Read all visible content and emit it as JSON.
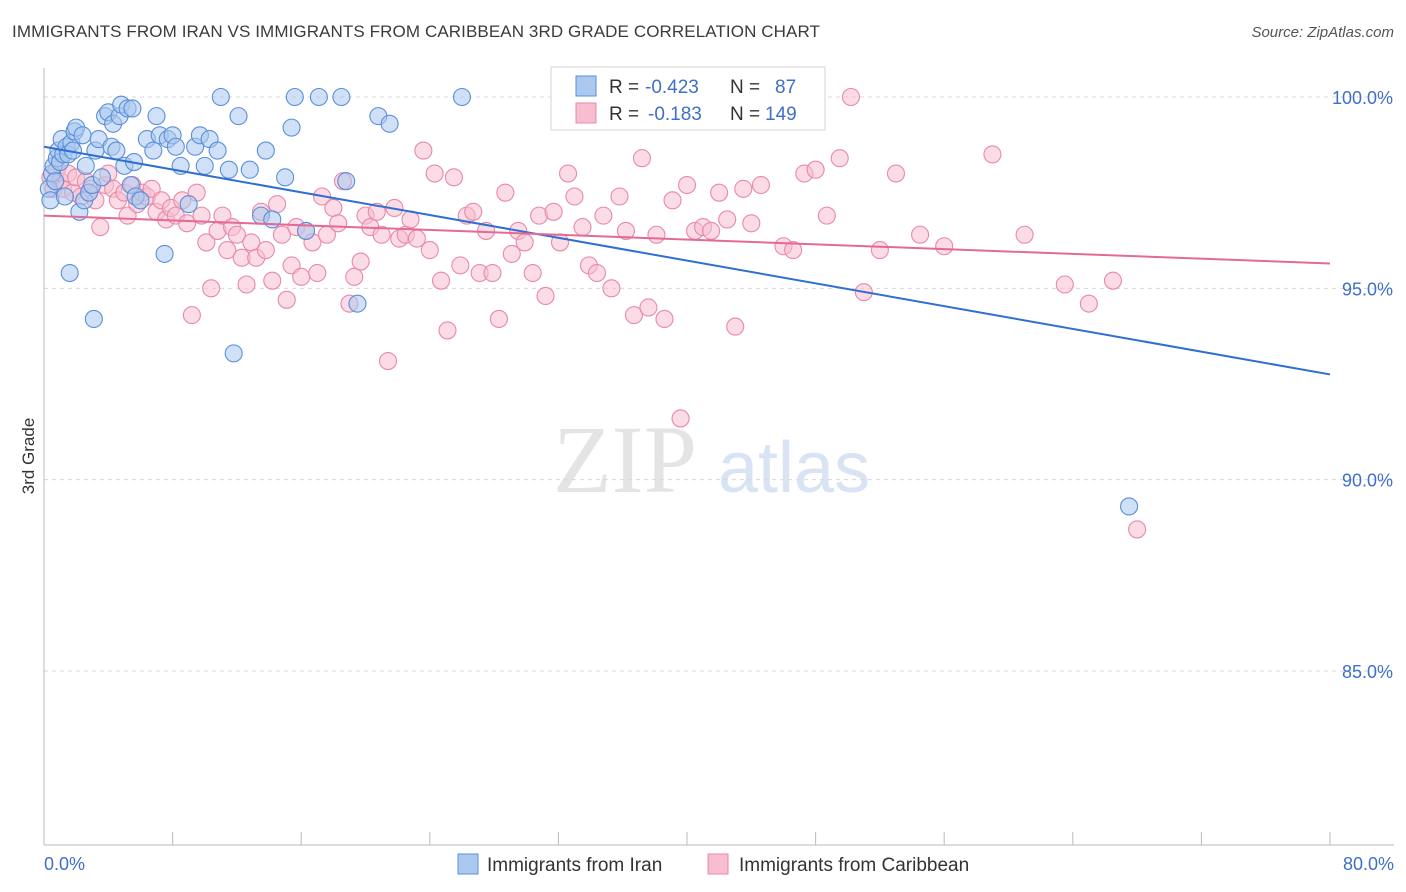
{
  "header": {
    "title": "IMMIGRANTS FROM IRAN VS IMMIGRANTS FROM CARIBBEAN 3RD GRADE CORRELATION CHART",
    "source": "Source: ZipAtlas.com"
  },
  "watermark": {
    "zip": "ZIP",
    "atlas": "atlas"
  },
  "legend_box": {
    "rows": [
      {
        "r_label": "R =",
        "r_value": "-0.423",
        "n_label": "N =",
        "n_value": "87"
      },
      {
        "r_label": "R =",
        "r_value": "-0.183",
        "n_label": "N =",
        "n_value": "149"
      }
    ]
  },
  "bottom_legend": [
    {
      "label": "Immigrants from Iran"
    },
    {
      "label": "Immigrants from Caribbean"
    }
  ],
  "colors": {
    "iran_fill": "#aac8f0",
    "iran_stroke": "#5b8fd8",
    "iran_line": "#2e6fcf",
    "carib_fill": "#f7bdd0",
    "carib_stroke": "#e889a8",
    "carib_line": "#e36a95",
    "tick_text": "#3f6fc9",
    "grid": "#d8d8d8"
  },
  "chart_data": {
    "type": "scatter",
    "title": "IMMIGRANTS FROM IRAN VS IMMIGRANTS FROM CARIBBEAN 3RD GRADE CORRELATION CHART",
    "xlabel": "",
    "ylabel": "3rd Grade",
    "xlim": [
      0,
      80
    ],
    "ylim": [
      80.5,
      100.8
    ],
    "y_ticks": [
      {
        "value": 100,
        "label": "100.0%"
      },
      {
        "value": 95,
        "label": "95.0%"
      },
      {
        "value": 90,
        "label": "90.0%"
      },
      {
        "value": 85,
        "label": "85.0%"
      }
    ],
    "x_tick_labels": [
      {
        "value": 0,
        "label": "0.0%"
      },
      {
        "value": 80,
        "label": "80.0%"
      }
    ],
    "x_minor_ticks": [
      0,
      8,
      16,
      24,
      32,
      40,
      48,
      56,
      64,
      72,
      80
    ],
    "grid": "horizontal dashed",
    "legend_placement": "top-center",
    "series": [
      {
        "name": "Immigrants from Iran",
        "R": -0.423,
        "N": 87,
        "trend": {
          "x": [
            0,
            80
          ],
          "y": [
            98.7,
            92.75
          ]
        },
        "points": [
          [
            0.3,
            97.6
          ],
          [
            0.4,
            97.3
          ],
          [
            0.5,
            98.0
          ],
          [
            0.6,
            98.2
          ],
          [
            0.7,
            97.8
          ],
          [
            0.8,
            98.4
          ],
          [
            0.9,
            98.6
          ],
          [
            1.0,
            98.3
          ],
          [
            1.1,
            98.9
          ],
          [
            1.2,
            98.5
          ],
          [
            1.3,
            97.4
          ],
          [
            1.4,
            98.7
          ],
          [
            1.5,
            98.5
          ],
          [
            1.6,
            95.4
          ],
          [
            1.7,
            98.8
          ],
          [
            1.8,
            98.6
          ],
          [
            1.9,
            99.1
          ],
          [
            2.0,
            99.2
          ],
          [
            2.2,
            97.0
          ],
          [
            2.4,
            99.0
          ],
          [
            2.5,
            97.3
          ],
          [
            2.6,
            98.2
          ],
          [
            2.8,
            97.5
          ],
          [
            3.0,
            97.7
          ],
          [
            3.1,
            94.2
          ],
          [
            3.2,
            98.6
          ],
          [
            3.4,
            98.9
          ],
          [
            3.6,
            97.9
          ],
          [
            3.8,
            99.5
          ],
          [
            4.0,
            99.6
          ],
          [
            4.2,
            98.7
          ],
          [
            4.3,
            99.3
          ],
          [
            4.5,
            98.6
          ],
          [
            4.7,
            99.5
          ],
          [
            4.8,
            99.8
          ],
          [
            5.0,
            98.2
          ],
          [
            5.2,
            99.7
          ],
          [
            5.4,
            97.7
          ],
          [
            5.5,
            99.7
          ],
          [
            5.6,
            98.3
          ],
          [
            5.7,
            97.4
          ],
          [
            6.0,
            97.3
          ],
          [
            6.4,
            98.9
          ],
          [
            6.8,
            98.6
          ],
          [
            7.0,
            99.5
          ],
          [
            7.2,
            99.0
          ],
          [
            7.5,
            95.9
          ],
          [
            7.7,
            98.9
          ],
          [
            8.0,
            99.0
          ],
          [
            8.2,
            98.7
          ],
          [
            8.5,
            98.2
          ],
          [
            9.0,
            97.2
          ],
          [
            9.4,
            98.7
          ],
          [
            9.7,
            99.0
          ],
          [
            10.0,
            98.2
          ],
          [
            10.3,
            98.9
          ],
          [
            10.8,
            98.6
          ],
          [
            11.0,
            100.0
          ],
          [
            11.5,
            98.1
          ],
          [
            11.8,
            93.3
          ],
          [
            12.1,
            99.5
          ],
          [
            12.8,
            98.1
          ],
          [
            13.5,
            96.9
          ],
          [
            13.8,
            98.6
          ],
          [
            14.2,
            96.8
          ],
          [
            15.0,
            97.9
          ],
          [
            15.4,
            99.2
          ],
          [
            15.6,
            100.0
          ],
          [
            16.3,
            96.5
          ],
          [
            17.1,
            100.0
          ],
          [
            18.5,
            100.0
          ],
          [
            18.8,
            97.8
          ],
          [
            19.5,
            94.6
          ],
          [
            20.8,
            99.5
          ],
          [
            21.5,
            99.3
          ],
          [
            26.0,
            100.0
          ],
          [
            67.5,
            89.3
          ]
        ]
      },
      {
        "name": "Immigrants from Caribbean",
        "R": -0.183,
        "N": 149,
        "trend": {
          "x": [
            0,
            80
          ],
          "y": [
            96.9,
            95.65
          ]
        },
        "points": [
          [
            0.4,
            97.9
          ],
          [
            0.6,
            97.6
          ],
          [
            0.8,
            98.1
          ],
          [
            1.0,
            97.8
          ],
          [
            1.2,
            97.6
          ],
          [
            1.5,
            98.0
          ],
          [
            1.8,
            97.5
          ],
          [
            2.0,
            97.9
          ],
          [
            2.3,
            97.4
          ],
          [
            2.6,
            97.8
          ],
          [
            2.9,
            97.6
          ],
          [
            3.2,
            97.3
          ],
          [
            3.5,
            96.6
          ],
          [
            3.8,
            97.7
          ],
          [
            4.0,
            98.0
          ],
          [
            4.3,
            97.6
          ],
          [
            4.6,
            97.3
          ],
          [
            5.0,
            97.5
          ],
          [
            5.2,
            96.9
          ],
          [
            5.5,
            97.7
          ],
          [
            5.8,
            97.2
          ],
          [
            6.1,
            97.5
          ],
          [
            6.4,
            97.4
          ],
          [
            6.7,
            97.6
          ],
          [
            7.0,
            97.0
          ],
          [
            7.3,
            97.3
          ],
          [
            7.6,
            96.8
          ],
          [
            7.9,
            97.1
          ],
          [
            8.2,
            96.9
          ],
          [
            8.6,
            97.3
          ],
          [
            8.9,
            96.7
          ],
          [
            9.2,
            94.3
          ],
          [
            9.5,
            97.5
          ],
          [
            9.8,
            96.9
          ],
          [
            10.1,
            96.2
          ],
          [
            10.4,
            95.0
          ],
          [
            10.8,
            96.5
          ],
          [
            11.1,
            96.9
          ],
          [
            11.4,
            96.0
          ],
          [
            11.7,
            96.6
          ],
          [
            12.0,
            96.4
          ],
          [
            12.3,
            95.8
          ],
          [
            12.6,
            95.1
          ],
          [
            12.9,
            96.2
          ],
          [
            13.2,
            95.8
          ],
          [
            13.5,
            97.0
          ],
          [
            13.8,
            96.0
          ],
          [
            14.2,
            95.2
          ],
          [
            14.5,
            97.2
          ],
          [
            14.8,
            96.4
          ],
          [
            15.1,
            94.7
          ],
          [
            15.4,
            95.6
          ],
          [
            15.7,
            96.6
          ],
          [
            16.0,
            95.3
          ],
          [
            16.3,
            96.5
          ],
          [
            16.7,
            96.2
          ],
          [
            17.0,
            95.4
          ],
          [
            17.3,
            97.4
          ],
          [
            17.6,
            96.4
          ],
          [
            18.0,
            97.1
          ],
          [
            18.3,
            96.7
          ],
          [
            18.6,
            97.8
          ],
          [
            19.0,
            94.6
          ],
          [
            19.3,
            95.3
          ],
          [
            19.7,
            95.7
          ],
          [
            20.0,
            96.9
          ],
          [
            20.3,
            96.6
          ],
          [
            20.7,
            97.0
          ],
          [
            21.0,
            96.4
          ],
          [
            21.4,
            93.1
          ],
          [
            21.8,
            97.1
          ],
          [
            22.1,
            96.3
          ],
          [
            22.5,
            96.4
          ],
          [
            22.8,
            96.8
          ],
          [
            23.2,
            96.3
          ],
          [
            23.6,
            98.6
          ],
          [
            24.0,
            96.0
          ],
          [
            24.3,
            98.0
          ],
          [
            24.7,
            95.2
          ],
          [
            25.1,
            93.9
          ],
          [
            25.5,
            97.9
          ],
          [
            25.9,
            95.6
          ],
          [
            26.3,
            96.9
          ],
          [
            26.7,
            97.0
          ],
          [
            27.1,
            95.4
          ],
          [
            27.5,
            96.5
          ],
          [
            27.9,
            95.4
          ],
          [
            28.3,
            94.2
          ],
          [
            28.7,
            97.5
          ],
          [
            29.1,
            95.9
          ],
          [
            29.5,
            96.5
          ],
          [
            29.9,
            96.2
          ],
          [
            30.4,
            95.4
          ],
          [
            30.8,
            96.9
          ],
          [
            31.2,
            94.8
          ],
          [
            31.7,
            97.0
          ],
          [
            32.1,
            96.2
          ],
          [
            32.6,
            98.0
          ],
          [
            33.0,
            97.4
          ],
          [
            33.5,
            96.6
          ],
          [
            33.9,
            95.6
          ],
          [
            34.4,
            95.4
          ],
          [
            34.8,
            96.9
          ],
          [
            35.3,
            95.0
          ],
          [
            35.8,
            97.4
          ],
          [
            36.2,
            96.5
          ],
          [
            36.7,
            94.3
          ],
          [
            37.2,
            98.4
          ],
          [
            37.6,
            94.5
          ],
          [
            38.1,
            96.4
          ],
          [
            38.6,
            94.2
          ],
          [
            39.1,
            97.3
          ],
          [
            39.6,
            91.6
          ],
          [
            40.0,
            97.7
          ],
          [
            40.5,
            96.5
          ],
          [
            41.0,
            96.6
          ],
          [
            41.5,
            96.5
          ],
          [
            42.0,
            97.5
          ],
          [
            42.5,
            96.8
          ],
          [
            43.0,
            94.0
          ],
          [
            43.5,
            97.6
          ],
          [
            44.0,
            96.7
          ],
          [
            44.6,
            97.7
          ],
          [
            45.3,
            100.0
          ],
          [
            46.0,
            96.1
          ],
          [
            46.6,
            96.0
          ],
          [
            47.3,
            98.0
          ],
          [
            48.0,
            98.1
          ],
          [
            48.7,
            96.9
          ],
          [
            49.5,
            98.4
          ],
          [
            50.2,
            100.0
          ],
          [
            51.0,
            94.9
          ],
          [
            52.0,
            96.0
          ],
          [
            53.0,
            98.0
          ],
          [
            54.5,
            96.4
          ],
          [
            56.0,
            96.1
          ],
          [
            59.0,
            98.5
          ],
          [
            61.0,
            96.4
          ],
          [
            63.5,
            95.1
          ],
          [
            65.0,
            94.6
          ],
          [
            66.5,
            95.2
          ],
          [
            68.0,
            88.7
          ]
        ]
      }
    ]
  }
}
